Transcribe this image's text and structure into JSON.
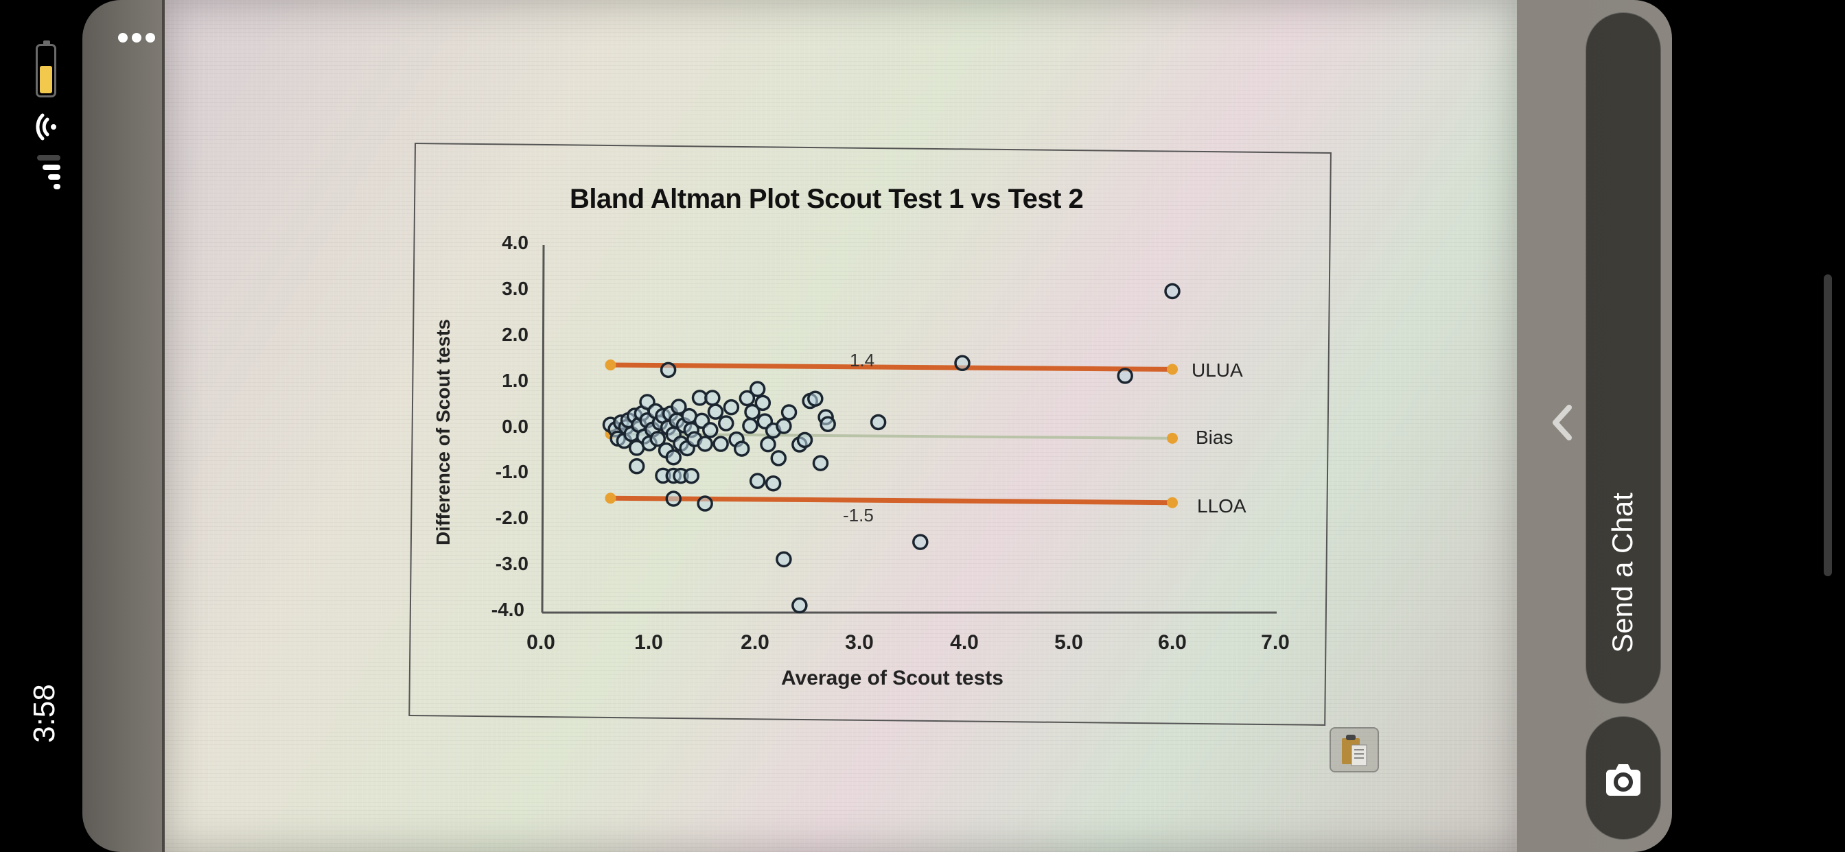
{
  "status_bar": {
    "time": "3:58",
    "battery_icon": "battery-icon",
    "wifi_icon": "wifi-icon",
    "signal_icon": "cellular-signal-icon"
  },
  "viewer": {
    "more_icon": "more-options-icon",
    "back_icon": "chevron-left-icon",
    "send_chat_label": "Send a Chat",
    "camera_icon": "camera-icon",
    "clipboard_icon": "clipboard-icon"
  },
  "chart_data": {
    "type": "scatter",
    "title": "Bland Altman Plot Scout Test 1 vs Test 2",
    "xlabel": "Average of Scout tests",
    "ylabel": "Difference of Scout tests",
    "xlim": [
      0.0,
      7.0
    ],
    "ylim": [
      -4.0,
      4.0
    ],
    "x_ticks": [
      "0.0",
      "1.0",
      "2.0",
      "3.0",
      "4.0",
      "5.0",
      "6.0",
      "7.0"
    ],
    "y_ticks": [
      "4.0",
      "3.0",
      "2.0",
      "1.0",
      "0.0",
      "-1.0",
      "-2.0",
      "-3.0",
      "-4.0"
    ],
    "grid": false,
    "reference_lines": [
      {
        "name": "ULUA",
        "y": 1.4,
        "label_value": "1.4",
        "x_start": 0.65,
        "x_end": 6.0,
        "color": "#d2622a"
      },
      {
        "name": "Bias",
        "y": -0.1,
        "x_start": 0.65,
        "x_end": 6.0,
        "color": "#b9c3a8"
      },
      {
        "name": "LLOA",
        "y": -1.5,
        "label_value": "-1.5",
        "x_start": 0.65,
        "x_end": 6.0,
        "color": "#d2622a"
      }
    ],
    "endpoint_marker_color": "#e8a030",
    "series": [
      {
        "name": "Differences",
        "marker": "open-circle",
        "points": [
          [
            0.65,
            0.1
          ],
          [
            0.7,
            0.0
          ],
          [
            0.72,
            -0.2
          ],
          [
            0.75,
            0.15
          ],
          [
            0.78,
            -0.25
          ],
          [
            0.8,
            0.05
          ],
          [
            0.82,
            0.2
          ],
          [
            0.85,
            -0.1
          ],
          [
            0.88,
            0.3
          ],
          [
            0.9,
            -0.4
          ],
          [
            0.92,
            0.1
          ],
          [
            0.95,
            0.35
          ],
          [
            0.97,
            -0.15
          ],
          [
            1.0,
            0.2
          ],
          [
            1.0,
            0.6
          ],
          [
            1.02,
            -0.3
          ],
          [
            1.05,
            0.0
          ],
          [
            1.08,
            0.4
          ],
          [
            1.1,
            -0.2
          ],
          [
            1.12,
            0.15
          ],
          [
            1.15,
            0.3
          ],
          [
            1.18,
            -0.45
          ],
          [
            1.2,
            0.05
          ],
          [
            1.22,
            0.35
          ],
          [
            1.25,
            -0.1
          ],
          [
            1.25,
            -0.6
          ],
          [
            1.28,
            0.2
          ],
          [
            1.3,
            0.5
          ],
          [
            1.32,
            -0.3
          ],
          [
            1.35,
            0.1
          ],
          [
            1.38,
            -0.4
          ],
          [
            1.4,
            0.3
          ],
          [
            1.42,
            0.0
          ],
          [
            1.45,
            -0.2
          ],
          [
            1.5,
            0.7
          ],
          [
            1.52,
            0.2
          ],
          [
            1.55,
            -0.3
          ],
          [
            1.6,
            0.0
          ],
          [
            1.62,
            0.7
          ],
          [
            1.65,
            0.4
          ],
          [
            1.7,
            -0.3
          ],
          [
            1.75,
            0.15
          ],
          [
            1.8,
            0.5
          ],
          [
            1.85,
            -0.2
          ],
          [
            1.9,
            -0.4
          ],
          [
            1.95,
            0.7
          ],
          [
            1.98,
            0.1
          ],
          [
            2.0,
            0.4
          ],
          [
            2.05,
            0.9
          ],
          [
            2.1,
            0.6
          ],
          [
            2.12,
            0.2
          ],
          [
            2.15,
            -0.3
          ],
          [
            2.2,
            0.0
          ],
          [
            2.25,
            -0.6
          ],
          [
            2.3,
            0.1
          ],
          [
            2.35,
            0.4
          ],
          [
            2.45,
            -0.3
          ],
          [
            2.5,
            -0.2
          ],
          [
            2.55,
            0.65
          ],
          [
            2.6,
            0.7
          ],
          [
            2.7,
            0.3
          ],
          [
            2.72,
            0.15
          ],
          [
            2.65,
            -0.7
          ],
          [
            3.2,
            0.2
          ],
          [
            0.9,
            -0.8
          ],
          [
            1.15,
            -1.0
          ],
          [
            1.25,
            -1.0
          ],
          [
            1.32,
            -1.0
          ],
          [
            1.42,
            -1.0
          ],
          [
            2.05,
            -1.1
          ],
          [
            2.2,
            -1.15
          ],
          [
            1.25,
            -1.5
          ],
          [
            1.55,
            -1.6
          ],
          [
            1.2,
            1.3
          ],
          [
            4.0,
            1.5
          ],
          [
            5.55,
            1.25
          ],
          [
            6.0,
            3.1
          ],
          [
            3.6,
            -2.4
          ],
          [
            2.3,
            -2.8
          ],
          [
            2.45,
            -3.8
          ]
        ]
      }
    ],
    "annotations": [
      "1.4",
      "-1.5",
      "ULUA",
      "Bias",
      "LLOA"
    ]
  }
}
